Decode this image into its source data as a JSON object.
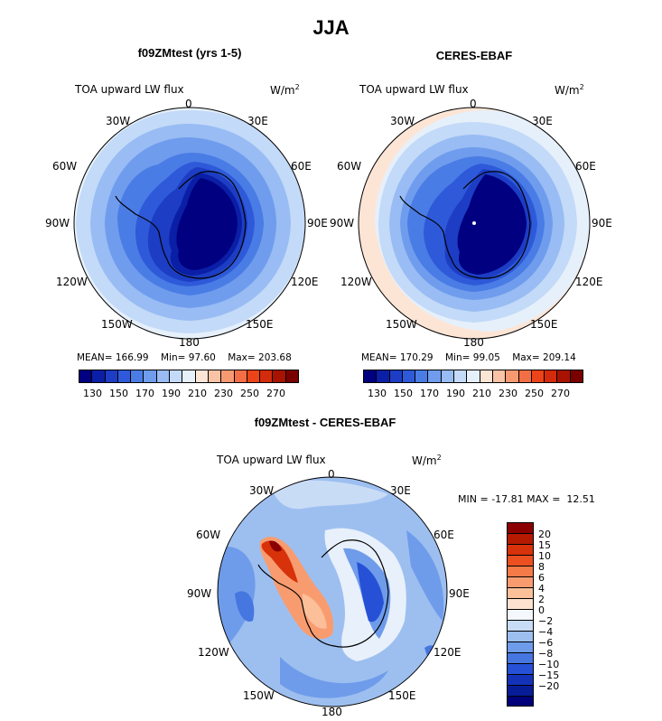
{
  "page_title": "JJA",
  "colors": {
    "blue_palette": [
      "#000080",
      "#0a1fa6",
      "#1c3dc4",
      "#2e5ad9",
      "#4a7ce5",
      "#6f9ced",
      "#98bcf3",
      "#c3daf8",
      "#e6f0fb"
    ],
    "red_palette": [
      "#fde5d6",
      "#fbc3a6",
      "#f79a72",
      "#f36e45",
      "#ec4318",
      "#d32b0b",
      "#a81300",
      "#7a0000"
    ]
  },
  "panels": [
    {
      "title": "f09ZMtest (yrs 1-5)",
      "variable": "TOA upward LW flux",
      "units": "W/m",
      "units_sup": "2",
      "lon_labels": [
        "0",
        "30E",
        "60E",
        "90E",
        "120E",
        "150E",
        "180",
        "150W",
        "120W",
        "90W",
        "60W",
        "30W"
      ],
      "stats": {
        "mean_label": "MEAN=",
        "mean": "166.99",
        "min_label": "Min=",
        "min": "97.60",
        "max_label": "Max=",
        "max": "203.68"
      },
      "colorbar_ticks": [
        "130",
        "150",
        "170",
        "190",
        "210",
        "230",
        "250",
        "270"
      ]
    },
    {
      "title": "CERES-EBAF",
      "variable": "TOA upward LW flux",
      "units": "W/m",
      "units_sup": "2",
      "lon_labels": [
        "0",
        "30E",
        "60E",
        "90E",
        "120E",
        "150E",
        "180",
        "150W",
        "120W",
        "90W",
        "60W",
        "30W"
      ],
      "stats": {
        "mean_label": "MEAN=",
        "mean": "170.29",
        "min_label": "Min=",
        "min": "99.05",
        "max_label": "Max=",
        "max": "209.14"
      },
      "colorbar_ticks": [
        "130",
        "150",
        "170",
        "190",
        "210",
        "230",
        "250",
        "270"
      ]
    }
  ],
  "diff_panel": {
    "title": "f09ZMtest - CERES-EBAF",
    "variable": "TOA upward LW flux",
    "units": "W/m",
    "units_sup": "2",
    "lon_labels": [
      "0",
      "30E",
      "60E",
      "90E",
      "120E",
      "150E",
      "180",
      "150W",
      "120W",
      "90W",
      "60W",
      "30W"
    ],
    "minmax": {
      "min_label": "MIN =",
      "min": "-17.81",
      "max_label": "MAX =",
      "max": "12.51"
    },
    "colorbar_ticks": [
      "20",
      "15",
      "10",
      "8",
      "6",
      "4",
      "2",
      "0",
      "−2",
      "−4",
      "−6",
      "−8",
      "−10",
      "−15",
      "−20"
    ],
    "colorbar_colors": [
      "#8b0000",
      "#b51a00",
      "#d8320a",
      "#ec5020",
      "#f47a48",
      "#f89c70",
      "#fbbf9a",
      "#fde2d0",
      "#f4f8fd",
      "#c9dcf6",
      "#9dbff0",
      "#6f9cea",
      "#4676e0",
      "#2651d6",
      "#1432b8",
      "#071d97",
      "#00007a"
    ]
  }
}
